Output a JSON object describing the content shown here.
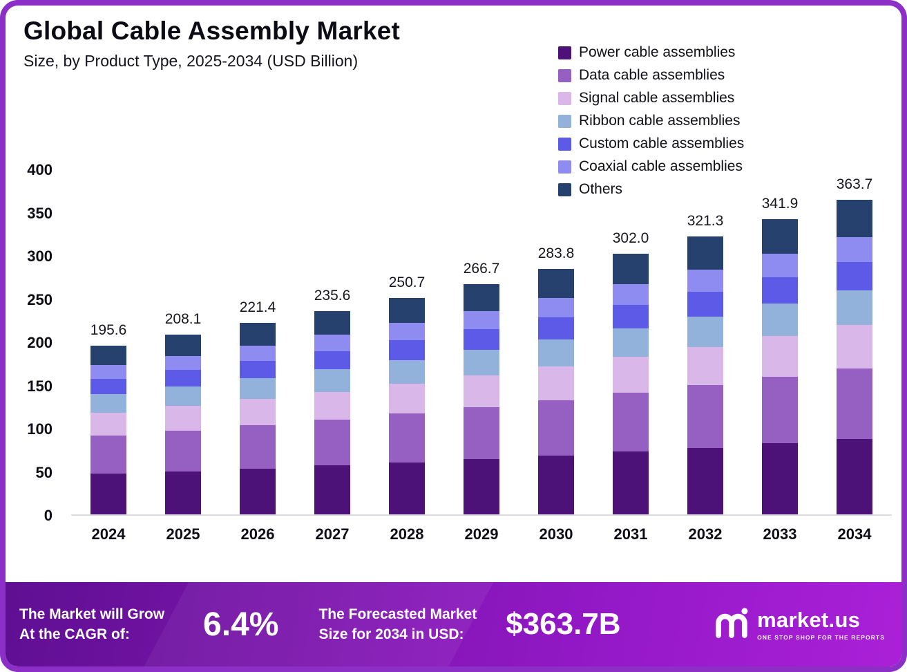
{
  "header": {
    "title": "Global Cable Assembly Market",
    "subtitle": "Size, by Product Type, 2025-2034 (USD Billion)"
  },
  "chart_data": {
    "type": "bar",
    "stacked": true,
    "title": "Global Cable Assembly Market",
    "subtitle": "Size, by Product Type, 2025-2034 (USD Billion)",
    "unit": "USD Billion",
    "categories": [
      "2024",
      "2025",
      "2026",
      "2027",
      "2028",
      "2029",
      "2030",
      "2031",
      "2032",
      "2033",
      "2034"
    ],
    "totals": [
      195.6,
      208.1,
      221.4,
      235.6,
      250.7,
      266.7,
      283.8,
      302.0,
      321.3,
      341.9,
      363.7
    ],
    "series": [
      {
        "name": "Power cable assemblies",
        "color": "#4c1277",
        "values": [
          46.9,
          49.9,
          53.1,
          56.5,
          60.2,
          64.0,
          68.1,
          72.5,
          77.1,
          82.1,
          87.3
        ]
      },
      {
        "name": "Data cable assemblies",
        "color": "#9660c2",
        "values": [
          44.0,
          46.8,
          49.8,
          53.0,
          56.4,
          60.0,
          63.9,
          68.0,
          72.3,
          76.9,
          81.8
        ]
      },
      {
        "name": "Signal cable assemblies",
        "color": "#d9b8e9",
        "values": [
          27.0,
          28.7,
          30.6,
          32.5,
          34.6,
          36.8,
          39.2,
          41.7,
          44.3,
          47.2,
          50.2
        ]
      },
      {
        "name": "Ribbon cable assemblies",
        "color": "#92b2dc",
        "values": [
          21.5,
          22.9,
          24.4,
          25.9,
          27.6,
          29.3,
          31.2,
          33.2,
          35.3,
          37.6,
          40.0
        ]
      },
      {
        "name": "Custom cable assemblies",
        "color": "#5d5ae8",
        "values": [
          17.6,
          18.7,
          19.9,
          21.2,
          22.6,
          24.0,
          25.5,
          27.2,
          28.9,
          30.8,
          32.7
        ]
      },
      {
        "name": "Coaxial cable assemblies",
        "color": "#8e8cf0",
        "values": [
          15.6,
          16.6,
          17.7,
          18.8,
          20.1,
          21.3,
          22.7,
          24.2,
          25.7,
          27.4,
          29.1
        ]
      },
      {
        "name": "Others",
        "color": "#27416e",
        "values": [
          23.0,
          24.5,
          25.9,
          27.7,
          29.2,
          31.3,
          33.2,
          35.2,
          37.7,
          39.9,
          42.6
        ]
      }
    ],
    "ylim": [
      0,
      400
    ],
    "yticks": [
      0,
      50,
      100,
      150,
      200,
      250,
      300,
      350,
      400
    ],
    "legend_position": "top-right",
    "grid": false
  },
  "footer": {
    "cagr_label_line1": "The Market will Grow",
    "cagr_label_line2": "At the CAGR of:",
    "cagr_value": "6.4%",
    "forecast_label_line1": "The Forecasted Market",
    "forecast_label_line2": "Size for 2034 in USD:",
    "forecast_value": "$363.7B",
    "brand": "market.us",
    "brand_tagline": "ONE STOP SHOP FOR THE REPORTS"
  },
  "colors": {
    "border": "#8b2fc6",
    "footer_gradient_start": "#5f0f92",
    "footer_gradient_end": "#aa20d8",
    "baseline": "#dcdce2"
  }
}
